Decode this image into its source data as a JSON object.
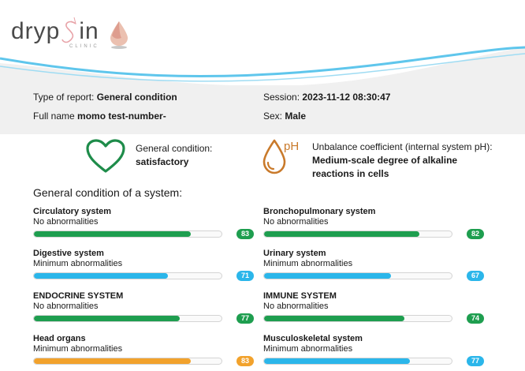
{
  "logo": {
    "text": "dryp",
    "text_end": "in",
    "sub": "CLINIC"
  },
  "info": {
    "report_type_label": "Type of report:",
    "report_type_value": "General condition",
    "session_label": "Session:",
    "session_value": "2023-11-12 08:30:47",
    "name_label": "Full name",
    "name_value": "momo test-number-",
    "sex_label": "Sex:",
    "sex_value": "Male"
  },
  "general": {
    "label": "General condition:",
    "value": "satisfactory",
    "icon": "heart-icon",
    "color": "#1e8c4a"
  },
  "unbalance": {
    "label": "Unbalance coefficient (internal system pH):",
    "value_line1": "Medium-scale degree of alkaline",
    "value_line2": "reactions in cells",
    "icon": "ph-drop-icon",
    "icon_text": "pH",
    "color": "#c97a2b"
  },
  "section_title": "General condition of a system:",
  "colors": {
    "green": "#1e9e4f",
    "blue": "#2bb6ea",
    "orange": "#f2a22c"
  },
  "systems": [
    {
      "name": "Circulatory system",
      "status": "No abnormalities",
      "score": 83,
      "score_text": "83",
      "color": "#1e9e4f"
    },
    {
      "name": "Bronchopulmonary system",
      "status": "No abnormalities",
      "score": 82,
      "score_text": "82",
      "color": "#1e9e4f"
    },
    {
      "name": "Digestive system",
      "status": "Minimum abnormalities",
      "score": 71,
      "score_text": "71",
      "color": "#2bb6ea"
    },
    {
      "name": "Urinary system",
      "status": "Minimum abnormalities",
      "score": 67,
      "score_text": "67",
      "color": "#2bb6ea"
    },
    {
      "name": "ENDOCRINE SYSTEM",
      "status": "No abnormalities",
      "score": 77,
      "score_text": "77",
      "color": "#1e9e4f"
    },
    {
      "name": "IMMUNE SYSTEM",
      "status": "No abnormalities",
      "score": 74,
      "score_text": "74",
      "color": "#1e9e4f"
    },
    {
      "name": "Head organs",
      "status": "Minimum abnormalities",
      "score": 83,
      "score_text": "83",
      "color": "#f2a22c"
    },
    {
      "name": "Musculoskeletal system",
      "status": "Minimum abnormalities",
      "score": 77,
      "score_text": "77",
      "color": "#2bb6ea"
    }
  ]
}
